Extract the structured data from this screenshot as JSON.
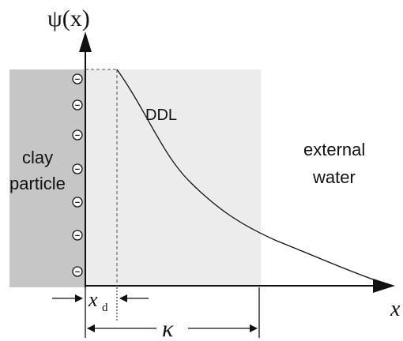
{
  "labels": {
    "y_axis": "ψ(x)",
    "x_axis": "x",
    "ddl": "DDL",
    "clay_line1": "clay",
    "clay_line2": "particle",
    "water_line1": "external",
    "water_line2": "water",
    "xd_main": "x",
    "xd_sub": "d",
    "kappa": "κ"
  },
  "charges": [
    "−",
    "−",
    "−",
    "−",
    "−",
    "−",
    "−"
  ],
  "colors": {
    "clay_fill": "#c6c6c6",
    "ddl_fill": "#ececec",
    "ink": "#111111",
    "dashed": "#555555"
  }
}
